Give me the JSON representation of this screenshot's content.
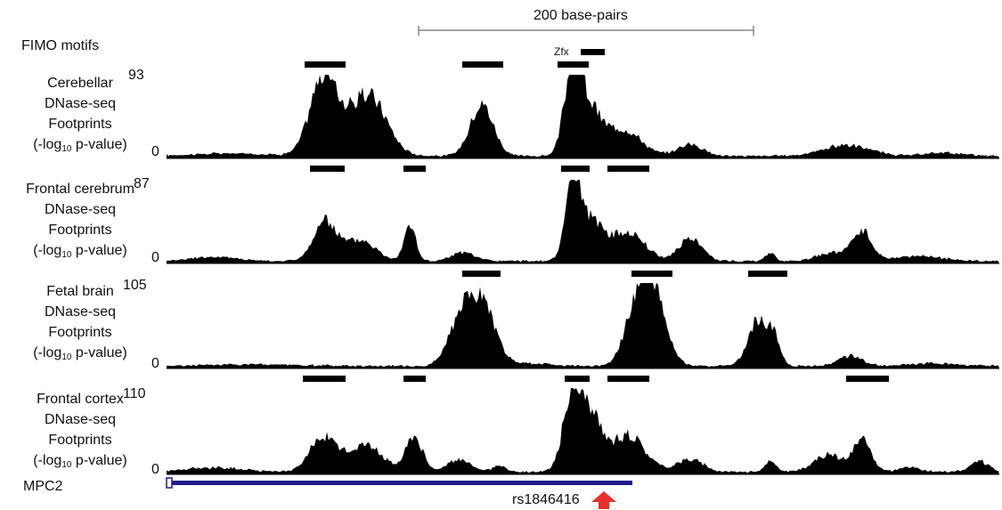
{
  "scale": {
    "label": "200 base-pairs"
  },
  "fimo": {
    "label": "FIMO motifs",
    "zfx_label": "Zfx",
    "zfx_bar": [
      652,
      679
    ],
    "bars": [
      [
        342,
        388
      ],
      [
        519,
        565
      ],
      [
        626,
        661
      ]
    ]
  },
  "tracks": [
    {
      "lines": [
        "Cerebellar",
        "DNase-seq",
        "Footprints"
      ],
      "pvalue": {
        "pre": "(-log",
        "sub": "10",
        "post": " p-value)"
      },
      "max": "93",
      "min": "0",
      "bars": []
    },
    {
      "lines": [
        "Frontal cerebrum",
        "DNase-seq",
        "Footprints"
      ],
      "pvalue": {
        "pre": "(-log",
        "sub": "10",
        "post": " p-value)"
      },
      "max": "87",
      "min": "0",
      "bars": [
        [
          348,
          387
        ],
        [
          453,
          478
        ],
        [
          630,
          662
        ],
        [
          682,
          729
        ]
      ]
    },
    {
      "lines": [
        "Fetal brain",
        "DNase-seq",
        "Footprints"
      ],
      "pvalue": {
        "pre": "(-log",
        "sub": "10",
        "post": " p-value)"
      },
      "max": "105",
      "min": "0",
      "bars": [
        [
          519,
          562
        ],
        [
          709,
          755
        ],
        [
          840,
          884
        ]
      ]
    },
    {
      "lines": [
        "Frontal cortex",
        "DNase-seq",
        "Footprints"
      ],
      "pvalue": {
        "pre": "(-log",
        "sub": "10",
        "post": " p-value)"
      },
      "max": "110",
      "min": "0",
      "bars": [
        [
          340,
          388
        ],
        [
          453,
          478
        ],
        [
          634,
          662
        ],
        [
          682,
          729
        ],
        [
          950,
          998
        ]
      ]
    }
  ],
  "gene": {
    "label": "MPC2",
    "color": "#1f1a8a"
  },
  "snp": {
    "label": "rs1846416",
    "arrow_color": "#e8302a"
  }
}
